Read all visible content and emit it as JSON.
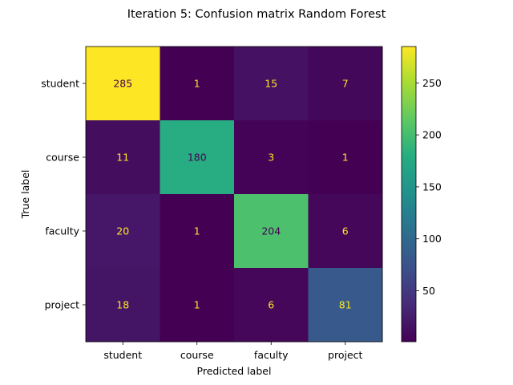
{
  "chart_data": {
    "type": "heatmap",
    "title": "Iteration 5: Confusion matrix Random Forest",
    "xlabel": "Predicted label",
    "ylabel": "True label",
    "x_categories": [
      "student",
      "course",
      "faculty",
      "project"
    ],
    "y_categories": [
      "student",
      "course",
      "faculty",
      "project"
    ],
    "values": [
      [
        285,
        1,
        15,
        7
      ],
      [
        11,
        180,
        3,
        1
      ],
      [
        20,
        1,
        204,
        6
      ],
      [
        18,
        1,
        6,
        81
      ]
    ],
    "colormap": "viridis",
    "vmin": 1,
    "vmax": 285,
    "colorbar_ticks": [
      50,
      100,
      150,
      200,
      250
    ],
    "text_colors": {
      "light": "#fde725",
      "dark": "#440154"
    }
  }
}
